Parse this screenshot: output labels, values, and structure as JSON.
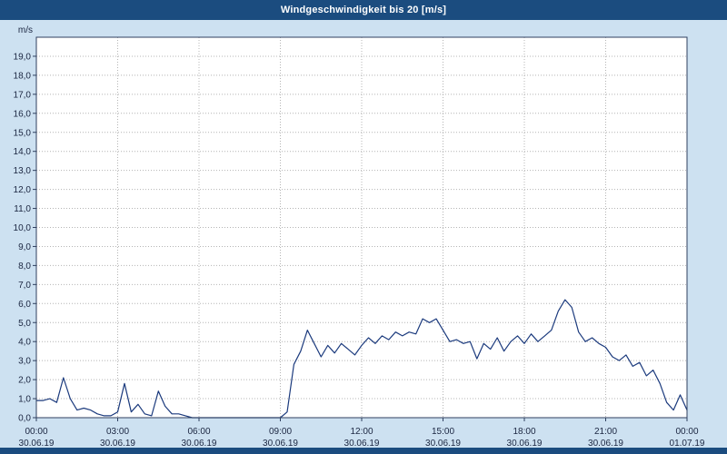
{
  "colors": {
    "page-bg": "#cde1f1",
    "bar-bg": "#1b4c7f",
    "label-color": "#1a2540",
    "line": "#1b3a7d",
    "grid": "#b4b4b4",
    "frame": "#2f3f5f",
    "plot-bg": "#ffffff"
  },
  "chart_data": {
    "type": "line",
    "title": "Windgeschwindigkeit bis 20 [m/s]",
    "ylabel": "m/s",
    "xlabel": "",
    "ylim": [
      0,
      20
    ],
    "x_range": [
      0,
      24
    ],
    "grid": true,
    "legend_position": "none",
    "y_tick_values": [
      0,
      1,
      2,
      3,
      4,
      5,
      6,
      7,
      8,
      9,
      10,
      11,
      12,
      13,
      14,
      15,
      16,
      17,
      18,
      19
    ],
    "y_tick_labels": [
      "0,0",
      "1,0",
      "2,0",
      "3,0",
      "4,0",
      "5,0",
      "6,0",
      "7,0",
      "8,0",
      "9,0",
      "10,0",
      "11,0",
      "12,0",
      "13,0",
      "14,0",
      "15,0",
      "16,0",
      "17,0",
      "18,0",
      "19,0"
    ],
    "x_tick_hours": [
      0,
      3,
      6,
      9,
      12,
      15,
      18,
      21,
      24
    ],
    "x_tick_labels": [
      "00:00",
      "03:00",
      "06:00",
      "09:00",
      "12:00",
      "15:00",
      "18:00",
      "21:00",
      "00:00"
    ],
    "x_date_labels": [
      "30.06.19",
      "30.06.19",
      "30.06.19",
      "30.06.19",
      "30.06.19",
      "30.06.19",
      "30.06.19",
      "30.06.19",
      "01.07.19"
    ],
    "series": [
      {
        "name": "Windgeschwindigkeit",
        "start_hour": 0,
        "interval_hours": 0.25,
        "values": [
          0.9,
          0.9,
          1.0,
          0.8,
          2.1,
          1.0,
          0.4,
          0.5,
          0.4,
          0.2,
          0.1,
          0.1,
          0.3,
          1.8,
          0.3,
          0.7,
          0.2,
          0.1,
          1.4,
          0.6,
          0.2,
          0.2,
          0.1,
          0.0,
          0.0,
          0.0,
          0.0,
          0.0,
          0.0,
          0.0,
          0.0,
          0.0,
          0.0,
          0.0,
          0.0,
          0.0,
          0.0,
          0.3,
          2.8,
          3.5,
          4.6,
          3.9,
          3.2,
          3.8,
          3.4,
          3.9,
          3.6,
          3.3,
          3.8,
          4.2,
          3.9,
          4.3,
          4.1,
          4.5,
          4.3,
          4.5,
          4.4,
          5.2,
          5.0,
          5.2,
          4.6,
          4.0,
          4.1,
          3.9,
          4.0,
          3.1,
          3.9,
          3.6,
          4.2,
          3.5,
          4.0,
          4.3,
          3.9,
          4.4,
          4.0,
          4.3,
          4.6,
          5.6,
          6.2,
          5.8,
          4.5,
          4.0,
          4.2,
          3.9,
          3.7,
          3.2,
          3.0,
          3.3,
          2.7,
          2.9,
          2.2,
          2.5,
          1.8,
          0.8,
          0.4,
          1.2,
          0.4
        ]
      }
    ]
  }
}
